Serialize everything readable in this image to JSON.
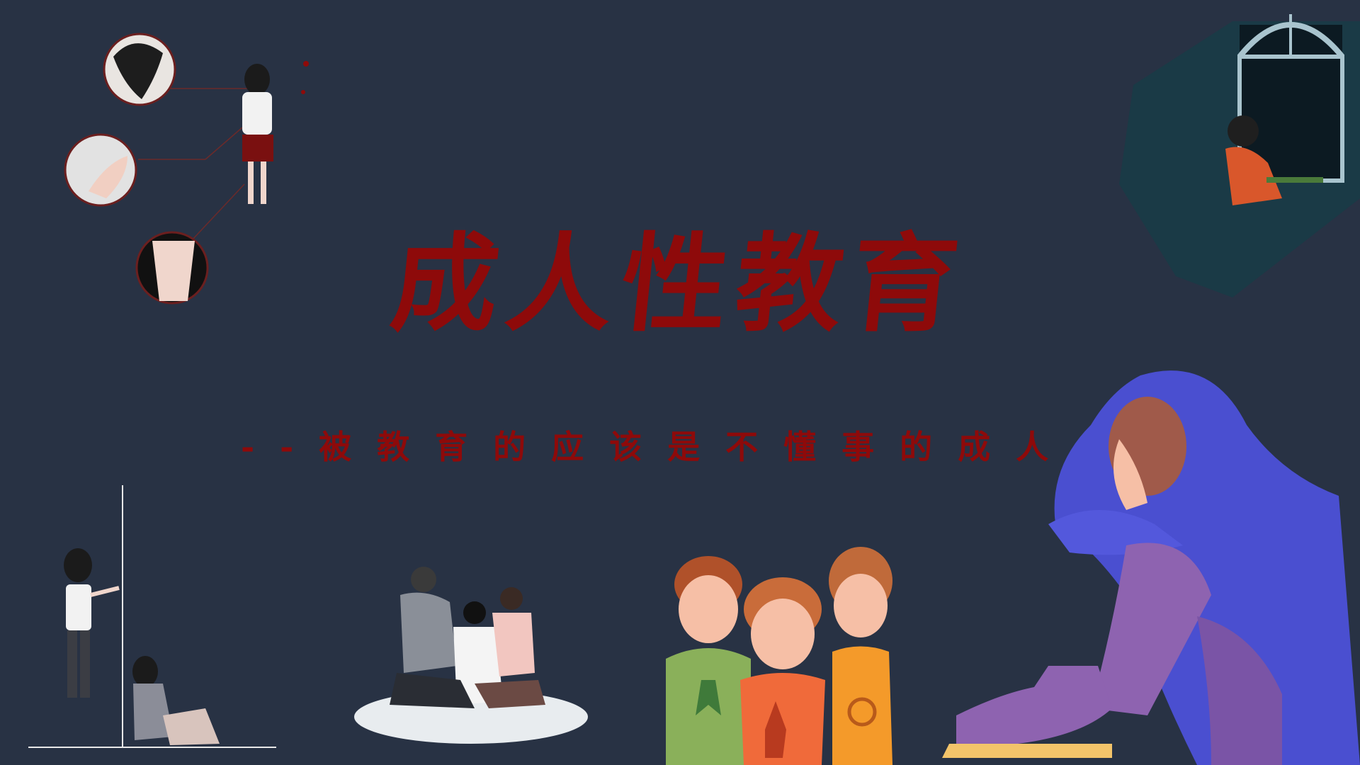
{
  "slide": {
    "title": "成人性教育",
    "subtitle": "--被教育的应该是不懂事的成人"
  },
  "colors": {
    "background": "#283244",
    "title_red": "#8e0a0a",
    "hoodie_blue": "#4a4fd0",
    "pants_purple": "#8e63b0"
  },
  "illustrations": [
    "injured-girl-with-closeup-circles",
    "girl-at-window-night",
    "girls-separated-by-wall",
    "family-comforting-child",
    "three-children-with-ribbon-badges",
    "hooded-person-hugging-knees"
  ]
}
